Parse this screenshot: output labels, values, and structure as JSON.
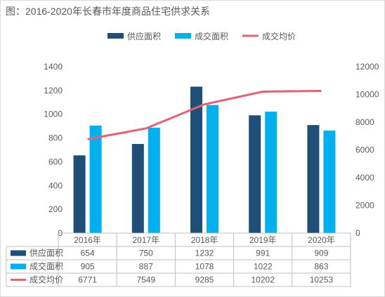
{
  "title": "图：2016-2020年长春市年度商品住宅供求关系",
  "chart_data": {
    "type": "bar",
    "categories": [
      "2016年",
      "2017年",
      "2018年",
      "2019年",
      "2020年"
    ],
    "series": [
      {
        "name": "供应面积",
        "kind": "bar",
        "axis": "left",
        "color": "#1f4e79",
        "values": [
          654,
          750,
          1232,
          991,
          909
        ]
      },
      {
        "name": "成交面积",
        "kind": "bar",
        "axis": "left",
        "color": "#00b0f0",
        "values": [
          905,
          887,
          1078,
          1022,
          863
        ]
      },
      {
        "name": "成交均价",
        "kind": "line",
        "axis": "right",
        "color": "#e06377",
        "values": [
          6771,
          7549,
          9285,
          10202,
          10253
        ]
      }
    ],
    "left_axis": {
      "min": 0,
      "max": 1400,
      "ticks": [
        "0",
        "200",
        "400",
        "600",
        "800",
        "1000",
        "1200",
        "1400"
      ]
    },
    "right_axis": {
      "min": 0,
      "max": 12000,
      "ticks": [
        "0",
        "2000",
        "4000",
        "6000",
        "8000",
        "10000",
        "12000"
      ]
    },
    "legend_position": "top",
    "grid": false,
    "data_table": true
  }
}
